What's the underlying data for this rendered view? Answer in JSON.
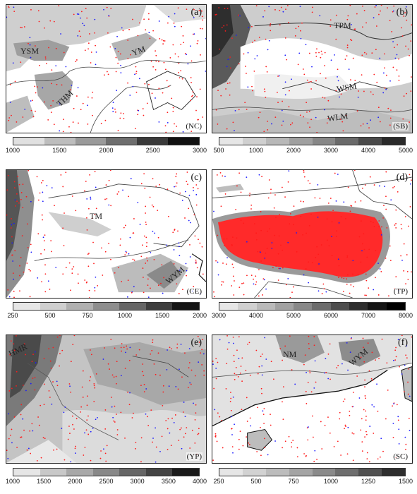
{
  "panels": [
    {
      "label": "(a)",
      "region": "(NC)",
      "features": [
        {
          "name": "YSM"
        },
        {
          "name": "YM"
        },
        {
          "name": "THM"
        }
      ],
      "colorbar": {
        "ticks": [
          "1000",
          "1500",
          "2000",
          "2500",
          "3000"
        ],
        "colors": [
          "#e0e0e0",
          "#bdbdbd",
          "#9a9a9a",
          "#6e6e6e",
          "#3a3a3a",
          "#111111"
        ]
      }
    },
    {
      "label": "(b)",
      "region": "(SB)",
      "features": [
        {
          "name": "TPM"
        },
        {
          "name": "WSM"
        },
        {
          "name": "WLM"
        }
      ],
      "colorbar": {
        "ticks": [
          "500",
          "1000",
          "2000",
          "3000",
          "4000",
          "5000"
        ],
        "colors": [
          "#e6e6e6",
          "#cfcfcf",
          "#b8b8b8",
          "#a0a0a0",
          "#878787",
          "#6a6a6a",
          "#4a4a4a",
          "#2a2a2a"
        ]
      }
    },
    {
      "label": "(c)",
      "region": "(CE)",
      "features": [
        {
          "name": "TM"
        },
        {
          "name": "WYM"
        }
      ],
      "colorbar": {
        "ticks": [
          "250",
          "500",
          "750",
          "1000",
          "1500",
          "2000"
        ],
        "colors": [
          "#e6e6e6",
          "#cfcfcf",
          "#b0b0b0",
          "#8e8e8e",
          "#666666",
          "#3e3e3e",
          "#151515"
        ]
      }
    },
    {
      "label": "(d)",
      "region": "(TP)",
      "features": [],
      "colorbar": {
        "ticks": [
          "3000",
          "4000",
          "5000",
          "6000",
          "7000",
          "8000"
        ],
        "colors": [
          "#e6e6e6",
          "#d0d0d0",
          "#bababa",
          "#a2a2a2",
          "#888888",
          "#6c6c6c",
          "#4e4e4e",
          "#2e2e2e",
          "#151515",
          "#000000"
        ]
      }
    },
    {
      "label": "(e)",
      "region": "(YP)",
      "features": [
        {
          "name": "HMR"
        }
      ],
      "colorbar": {
        "ticks": [
          "1000",
          "1500",
          "2000",
          "2500",
          "3000",
          "3500",
          "4000"
        ],
        "colors": [
          "#e6e6e6",
          "#c8c8c8",
          "#a8a8a8",
          "#888888",
          "#666666",
          "#444444",
          "#1a1a1a"
        ]
      }
    },
    {
      "label": "(f)",
      "region": "(SC)",
      "features": [
        {
          "name": "NM"
        },
        {
          "name": "WYM"
        }
      ],
      "colorbar": {
        "ticks": [
          "250",
          "500",
          "750",
          "1000",
          "1250",
          "1500"
        ],
        "colors": [
          "#e6e6e6",
          "#d2d2d2",
          "#bcbcbc",
          "#a4a4a4",
          "#8a8a8a",
          "#6e6e6e",
          "#505050",
          "#2e2e2e"
        ]
      }
    }
  ],
  "dot_colors": {
    "red": "#ff1a1a",
    "blue": "#1a1aff"
  }
}
